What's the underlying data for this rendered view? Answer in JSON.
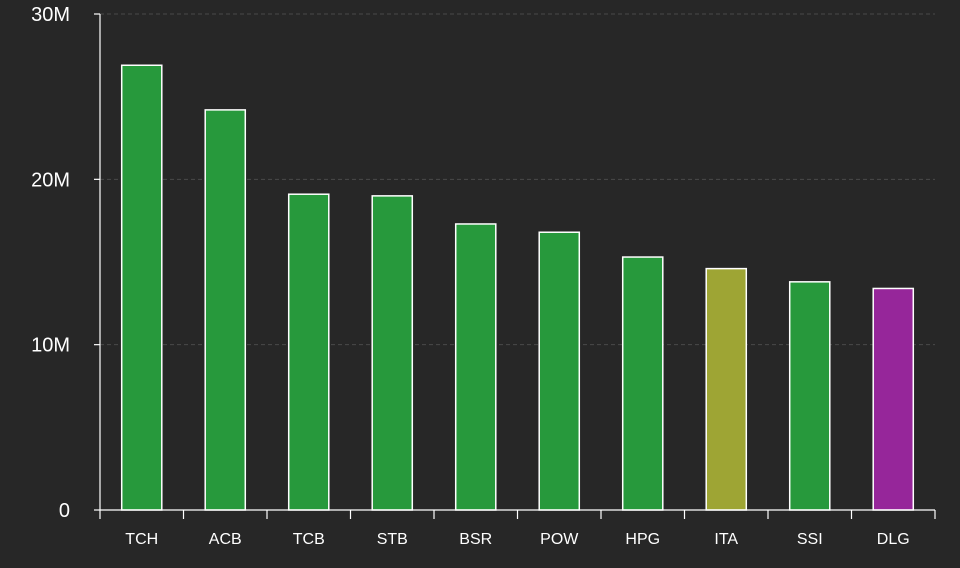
{
  "chart_data": {
    "type": "bar",
    "categories": [
      "TCH",
      "ACB",
      "TCB",
      "STB",
      "BSR",
      "POW",
      "HPG",
      "ITA",
      "SSI",
      "DLG"
    ],
    "values": [
      26900000,
      24200000,
      19100000,
      19000000,
      17300000,
      16800000,
      15300000,
      14600000,
      13800000,
      13400000
    ],
    "colors": [
      "#27993c",
      "#27993c",
      "#27993c",
      "#27993c",
      "#27993c",
      "#27993c",
      "#27993c",
      "#9ea534",
      "#27993c",
      "#96269a"
    ],
    "yticks": [
      {
        "value": 0,
        "label": "0"
      },
      {
        "value": 10000000,
        "label": "10M"
      },
      {
        "value": 20000000,
        "label": "20M"
      },
      {
        "value": 30000000,
        "label": "30M"
      }
    ],
    "ylim": [
      0,
      30000000
    ],
    "title": "",
    "xlabel": "",
    "ylabel": "",
    "grid": true
  }
}
